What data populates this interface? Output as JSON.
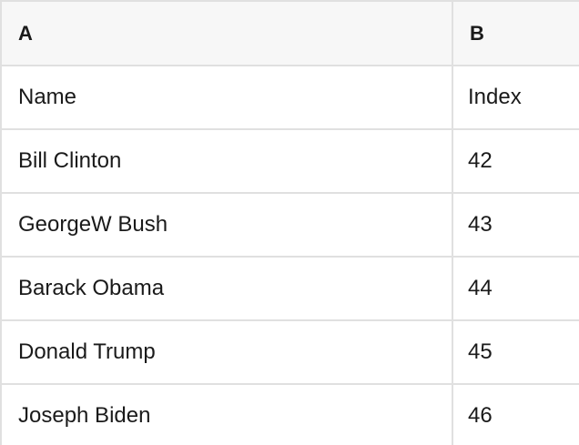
{
  "table": {
    "column_headers": [
      "A",
      "B"
    ],
    "rows": [
      {
        "a": "Name",
        "b": "Index"
      },
      {
        "a": "Bill Clinton",
        "b": "42"
      },
      {
        "a": "GeorgeW Bush",
        "b": "43"
      },
      {
        "a": "Barack Obama",
        "b": "44"
      },
      {
        "a": "Donald Trump",
        "b": "45"
      },
      {
        "a": "Joseph Biden",
        "b": "46"
      }
    ],
    "colors": {
      "header_background": "#f7f7f7",
      "grid_border": "#e0e0e0",
      "text": "#1a1a1a",
      "row_background": "#ffffff"
    }
  }
}
